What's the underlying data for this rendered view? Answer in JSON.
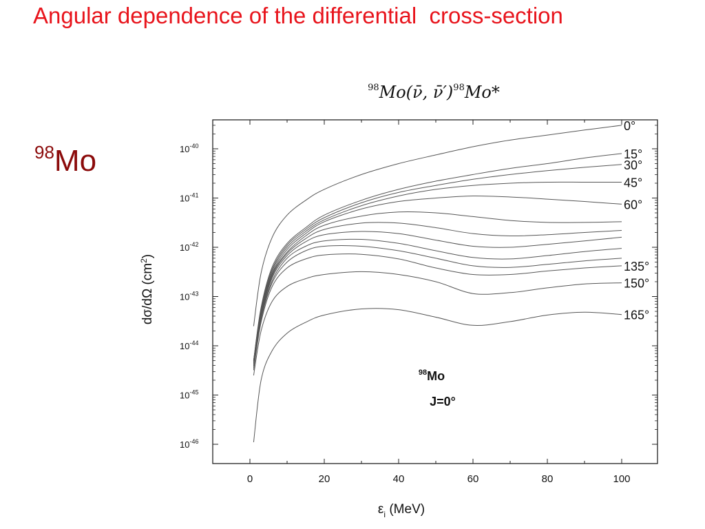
{
  "slide": {
    "title": "Angular dependence of the differential  cross-section",
    "side_label_mass": "98",
    "side_label_symbol": "Mo"
  },
  "colors": {
    "title": "#e8141c",
    "side_label": "#8b0a0a",
    "curves": "#555555"
  },
  "chart_data": {
    "type": "line",
    "title": "98Mo(ν̄, ν̄')98Mo*",
    "title_parts": {
      "mass1": "98",
      "body1": "Mo(ν̄, ν̄′)",
      "mass2": "98",
      "body2": "Mo*"
    },
    "xlabel": "εi (MeV)",
    "xlabel_parts": {
      "symbol": "ε",
      "sub": "i",
      "unit": " (MeV)"
    },
    "ylabel": "dσ/dΩ (cm²)",
    "ylabel_parts": {
      "main": "dσ/dΩ (cm",
      "sup": "2",
      "end": ")"
    },
    "xlim": [
      -10,
      110
    ],
    "ylim": [
      1e-46,
      3e-40
    ],
    "y_scale": "log",
    "grid": false,
    "x_ticks": [
      0,
      20,
      40,
      60,
      80,
      100
    ],
    "x_tick_labels": [
      "0",
      "20",
      "40",
      "60",
      "80",
      "100"
    ],
    "y_ticks": [
      {
        "base": "10",
        "exp": "-40"
      },
      {
        "base": "10",
        "exp": "-41"
      },
      {
        "base": "10",
        "exp": "-42"
      },
      {
        "base": "10",
        "exp": "-43"
      },
      {
        "base": "10",
        "exp": "-44"
      },
      {
        "base": "10",
        "exp": "-45"
      },
      {
        "base": "10",
        "exp": "-46"
      }
    ],
    "annotation": {
      "mass": "98",
      "symbol": "Mo",
      "line2": "J=0°"
    },
    "series": [
      {
        "name": "0°",
        "x": [
          1,
          3,
          6,
          10,
          15,
          20,
          30,
          40,
          50,
          60,
          70,
          80,
          90,
          100
        ],
        "y": [
          2.5e-44,
          3e-43,
          1.6e-42,
          4.5e-42,
          9e-42,
          1.5e-41,
          3e-41,
          5e-41,
          7.5e-41,
          1.1e-40,
          1.5e-40,
          1.9e-40,
          2.4e-40,
          3e-40
        ]
      },
      {
        "name": "15°",
        "x": [
          1,
          3,
          6,
          10,
          15,
          20,
          30,
          40,
          50,
          60,
          70,
          80,
          90,
          100
        ],
        "y": [
          5e-45,
          6e-44,
          4e-43,
          1.2e-42,
          2.5e-42,
          4.5e-42,
          9e-42,
          1.5e-41,
          2.2e-41,
          3e-41,
          4e-41,
          5e-41,
          6.5e-41,
          8e-41
        ]
      },
      {
        "name": "30°",
        "x": [
          1,
          3,
          6,
          10,
          15,
          20,
          30,
          40,
          50,
          60,
          70,
          80,
          90,
          100
        ],
        "y": [
          5e-45,
          5.5e-44,
          3.6e-43,
          1.1e-42,
          2.3e-42,
          4e-42,
          8e-42,
          1.3e-41,
          1.8e-41,
          2.4e-41,
          3e-41,
          3.6e-41,
          4.2e-41,
          4.8e-41
        ]
      },
      {
        "name": "45°",
        "x": [
          1,
          3,
          6,
          10,
          15,
          20,
          30,
          40,
          50,
          60,
          70,
          80,
          90,
          100
        ],
        "y": [
          5e-45,
          5e-44,
          3.3e-43,
          1e-42,
          2.1e-42,
          3.6e-42,
          7e-42,
          1.1e-41,
          1.5e-41,
          1.8e-41,
          2e-41,
          2.1e-41,
          2.1e-41,
          2.1e-41
        ]
      },
      {
        "name": "60°",
        "x": [
          1,
          3,
          6,
          10,
          15,
          20,
          30,
          40,
          50,
          60,
          70,
          80,
          90,
          100
        ],
        "y": [
          4.8e-45,
          4.8e-44,
          3e-43,
          9e-43,
          1.9e-42,
          3.3e-42,
          6e-42,
          8.5e-42,
          1e-41,
          1.1e-41,
          1.05e-41,
          9.5e-42,
          8.5e-42,
          7.5e-42
        ]
      },
      {
        "name": "",
        "x": [
          1,
          3,
          6,
          10,
          15,
          20,
          30,
          40,
          50,
          60,
          70,
          80,
          90,
          100
        ],
        "y": [
          4.5e-45,
          4.5e-44,
          2.8e-43,
          8e-43,
          1.7e-42,
          2.8e-42,
          4.3e-42,
          5.2e-42,
          5e-42,
          4.2e-42,
          3.5e-42,
          3.2e-42,
          3.2e-42,
          3.3e-42
        ]
      },
      {
        "name": "",
        "x": [
          1,
          3,
          6,
          10,
          15,
          20,
          30,
          40,
          50,
          60,
          70,
          80,
          90,
          100
        ],
        "y": [
          4.3e-45,
          4.2e-44,
          2.6e-43,
          7.5e-43,
          1.5e-42,
          2.3e-42,
          3.1e-42,
          3.1e-42,
          2.5e-42,
          1.9e-42,
          1.7e-42,
          1.8e-42,
          2e-42,
          2.2e-42
        ]
      },
      {
        "name": "",
        "x": [
          1,
          3,
          6,
          10,
          15,
          20,
          30,
          40,
          50,
          60,
          70,
          80,
          90,
          100
        ],
        "y": [
          4e-45,
          4e-44,
          2.4e-43,
          6.8e-43,
          1.3e-42,
          1.8e-42,
          2.1e-42,
          1.9e-42,
          1.4e-42,
          1.05e-42,
          1e-42,
          1.15e-42,
          1.35e-42,
          1.6e-42
        ]
      },
      {
        "name": "",
        "x": [
          1,
          3,
          6,
          10,
          15,
          20,
          30,
          40,
          50,
          60,
          70,
          80,
          90,
          100
        ],
        "y": [
          3.8e-45,
          3.7e-44,
          2.1e-43,
          6e-43,
          1.05e-42,
          1.35e-42,
          1.45e-42,
          1.2e-42,
          8.5e-43,
          6.2e-43,
          5.8e-43,
          6.8e-43,
          8.2e-43,
          9.5e-43
        ]
      },
      {
        "name": "",
        "x": [
          1,
          3,
          6,
          10,
          15,
          20,
          30,
          40,
          50,
          60,
          70,
          80,
          90,
          100
        ],
        "y": [
          3.5e-45,
          3.4e-44,
          1.9e-43,
          5e-43,
          8.5e-43,
          1.05e-42,
          1.05e-42,
          8.5e-43,
          6e-43,
          4.2e-43,
          3.9e-43,
          4.5e-43,
          5.3e-43,
          6e-43
        ]
      },
      {
        "name": "135°",
        "x": [
          1,
          3,
          6,
          10,
          15,
          20,
          30,
          40,
          50,
          60,
          70,
          80,
          90,
          100
        ],
        "y": [
          3.2e-45,
          3e-44,
          1.6e-43,
          3.8e-43,
          5.8e-43,
          7e-43,
          7.2e-43,
          5.8e-43,
          3.8e-43,
          2.8e-43,
          2.8e-43,
          3.3e-43,
          3.8e-43,
          4.2e-43
        ]
      },
      {
        "name": "150°",
        "x": [
          1,
          3,
          6,
          10,
          15,
          20,
          30,
          40,
          50,
          60,
          70,
          80,
          90,
          100
        ],
        "y": [
          2.5e-45,
          2e-44,
          8e-44,
          1.6e-43,
          2.3e-43,
          2.8e-43,
          3.2e-43,
          2.8e-43,
          2e-43,
          1.15e-43,
          1.2e-43,
          1.5e-43,
          1.8e-43,
          1.9e-43
        ]
      },
      {
        "name": "165°",
        "x": [
          1,
          3,
          6,
          10,
          15,
          20,
          30,
          40,
          50,
          60,
          70,
          80,
          90,
          100
        ],
        "y": [
          1.1e-46,
          2e-45,
          8e-45,
          1.8e-44,
          3e-44,
          4.2e-44,
          5.6e-44,
          5.4e-44,
          3.8e-44,
          2.6e-44,
          3.1e-44,
          4.2e-44,
          4.8e-44,
          4.3e-44
        ]
      }
    ]
  }
}
